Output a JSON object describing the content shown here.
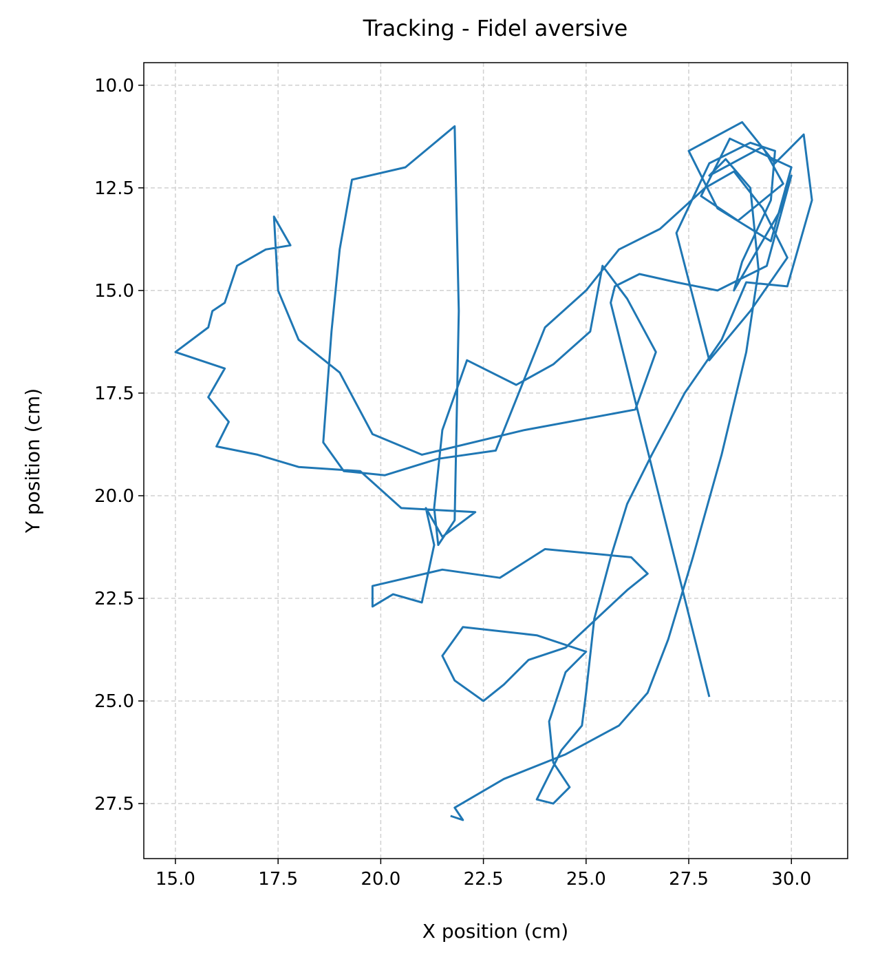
{
  "chart_data": {
    "type": "line",
    "title": "Tracking - Fidel aversive",
    "xlabel": "X position (cm)",
    "ylabel": "Y position (cm)",
    "color": "#1f77b4",
    "grid": true,
    "xlim": [
      14.23,
      31.37
    ],
    "ylim": [
      28.84,
      9.45
    ],
    "xticks": [
      {
        "value": 15,
        "label": "15.0"
      },
      17.5,
      {
        "value": 20,
        "label": "20.0"
      },
      22.5,
      {
        "value": 25,
        "label": "25.0"
      },
      27.5,
      {
        "value": 30,
        "label": "30.0"
      }
    ],
    "yticks": [
      {
        "value": 10,
        "label": "10.0"
      },
      12.5,
      {
        "value": 15,
        "label": "15.0"
      },
      17.5,
      {
        "value": 20,
        "label": "20.0"
      },
      22.5,
      {
        "value": 25,
        "label": "25.0"
      },
      27.5
    ],
    "x": [
      21.7,
      22.0,
      21.8,
      23.0,
      24.5,
      25.8,
      26.5,
      27.0,
      27.6,
      28.3,
      28.9,
      29.2,
      29.0,
      28.4,
      28.0,
      29.3,
      29.8,
      28.7,
      27.8,
      28.5,
      30.0,
      29.5,
      28.2,
      27.5,
      28.8,
      29.6,
      30.3,
      30.5,
      29.9,
      28.9,
      28.3,
      27.4,
      26.6,
      26.0,
      25.6,
      25.2,
      25.0,
      24.9,
      24.4,
      24.0,
      23.8,
      24.2,
      24.6,
      24.2,
      24.1,
      24.5,
      25.0,
      23.8,
      22.0,
      21.5,
      21.8,
      22.5,
      23.0,
      23.6,
      24.5,
      26.0,
      26.5,
      26.1,
      24.0,
      22.9,
      21.5,
      19.8,
      19.8,
      20.3,
      21.0,
      21.3,
      21.1,
      21.5,
      22.3,
      20.5,
      19.5,
      18.0,
      17.0,
      16.0,
      16.3,
      15.8,
      16.2,
      15.0,
      15.8,
      15.9,
      16.2,
      16.5,
      17.2,
      17.8,
      17.4,
      17.5,
      18.0,
      19.0,
      19.8,
      21.0,
      23.5,
      26.2,
      26.7,
      26.0,
      25.4,
      25.1,
      24.2,
      23.3,
      22.1,
      21.5,
      21.3,
      21.4,
      21.8,
      21.9,
      21.8,
      20.6,
      19.3,
      19.0,
      18.8,
      18.6,
      19.1,
      20.1,
      21.4,
      22.8,
      24.0,
      25.0,
      25.8,
      26.8,
      27.9,
      28.6,
      29.3,
      29.9,
      29.0,
      28.0,
      27.2,
      28.0,
      29.0,
      29.6,
      29.5,
      28.8,
      28.6,
      29.7,
      30.0,
      29.4,
      28.2,
      27.2,
      26.3,
      25.7,
      25.6,
      28.0
    ],
    "values": [
      27.8,
      27.9,
      27.6,
      26.9,
      26.3,
      25.6,
      24.8,
      23.5,
      21.5,
      19.0,
      16.5,
      14.5,
      12.5,
      11.8,
      12.2,
      11.5,
      12.4,
      13.3,
      12.7,
      11.3,
      12.0,
      13.8,
      13.0,
      11.6,
      10.9,
      11.9,
      11.2,
      12.8,
      14.9,
      14.8,
      16.2,
      17.5,
      19.0,
      20.2,
      21.5,
      23.0,
      24.8,
      25.6,
      26.2,
      27.0,
      27.4,
      27.5,
      27.1,
      26.5,
      25.5,
      24.3,
      23.8,
      23.4,
      23.2,
      23.9,
      24.5,
      25.0,
      24.6,
      24.0,
      23.7,
      22.3,
      21.9,
      21.5,
      21.3,
      22.0,
      21.8,
      22.2,
      22.7,
      22.4,
      22.6,
      21.2,
      20.3,
      21.0,
      20.4,
      20.3,
      19.4,
      19.3,
      19.0,
      18.8,
      18.2,
      17.6,
      16.9,
      16.5,
      15.9,
      15.5,
      15.3,
      14.4,
      14.0,
      13.9,
      13.2,
      15.0,
      16.2,
      17.0,
      18.5,
      19.0,
      18.4,
      17.9,
      16.5,
      15.2,
      14.4,
      16.0,
      16.8,
      17.3,
      16.7,
      18.4,
      20.3,
      21.2,
      20.6,
      15.5,
      11.0,
      12.0,
      12.3,
      14.0,
      16.0,
      18.7,
      19.4,
      19.5,
      19.1,
      18.9,
      15.9,
      15.0,
      14.0,
      13.5,
      12.5,
      12.1,
      13.0,
      14.2,
      15.5,
      16.7,
      13.6,
      11.9,
      11.4,
      11.6,
      12.8,
      14.3,
      15.0,
      13.1,
      12.2,
      14.4,
      15.0,
      14.8,
      14.6,
      14.9,
      15.3,
      24.9
    ]
  }
}
